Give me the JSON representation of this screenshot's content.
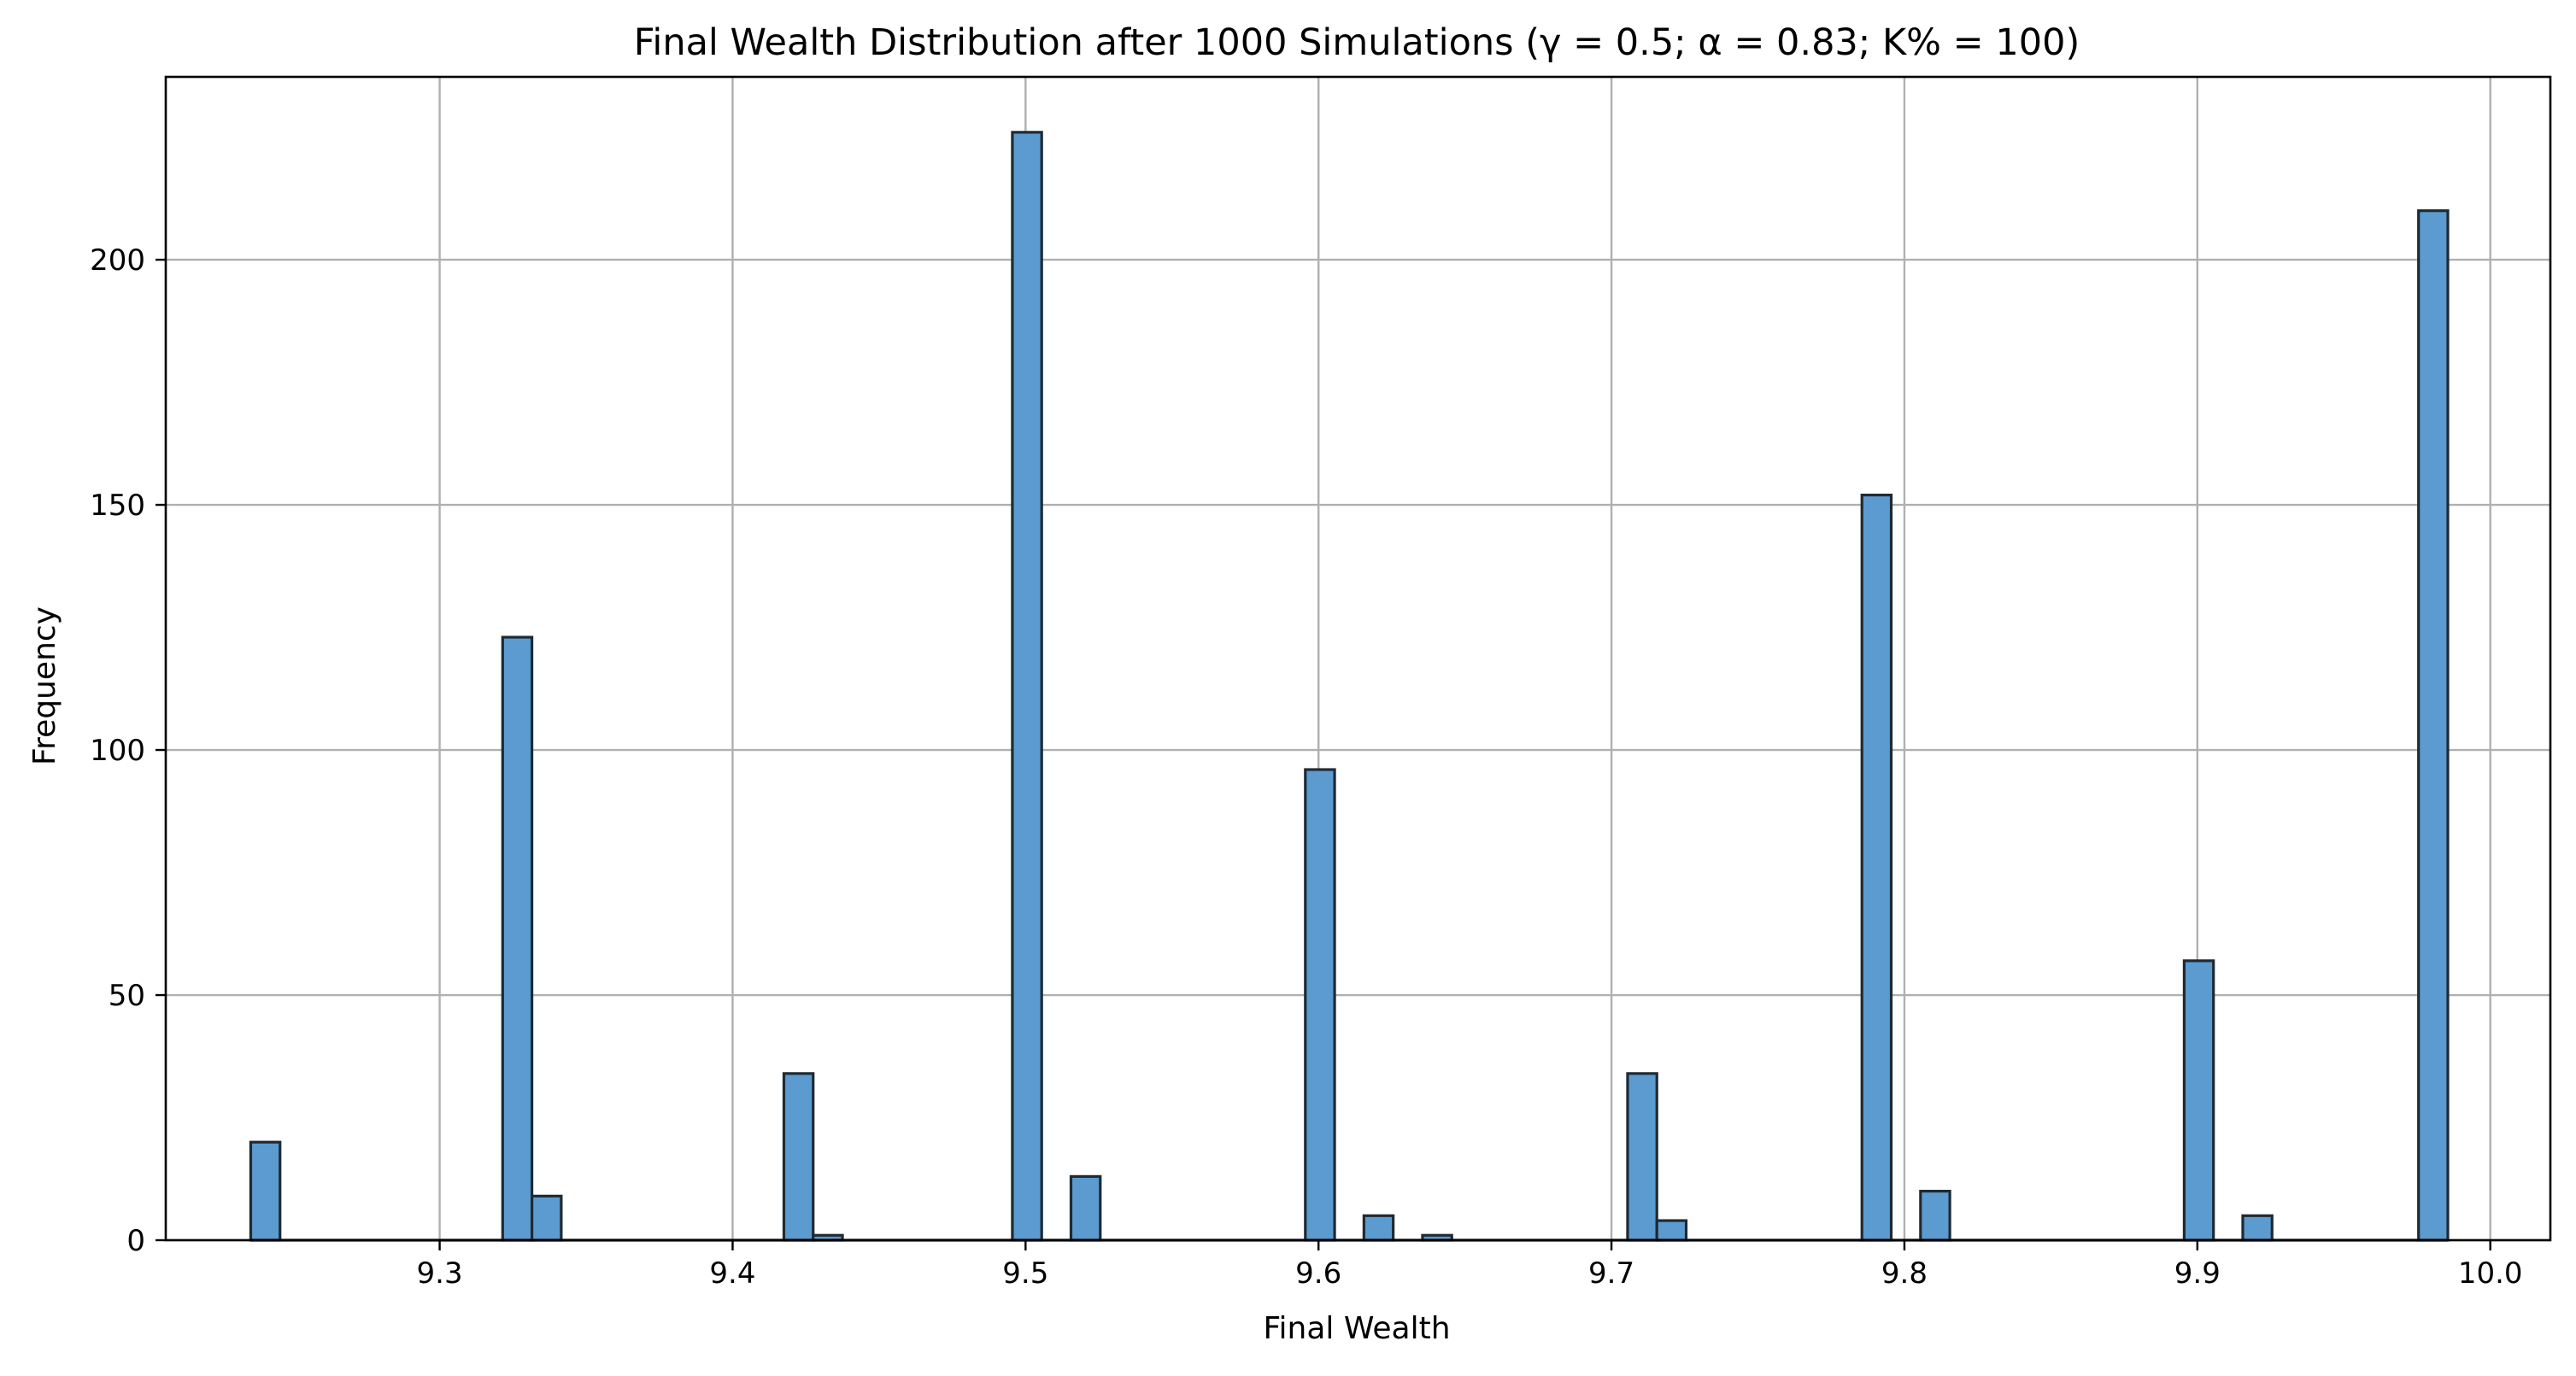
{
  "chart_data": {
    "type": "bar",
    "title": "Final Wealth Distribution after 1000 Simulations (γ = 0.5; α = 0.83; K% = 100)",
    "xlabel": "Final Wealth",
    "ylabel": "Frequency",
    "xlim": [
      9.2065,
      10.0205
    ],
    "ylim": [
      0,
      237.3
    ],
    "x_ticks": [
      9.3,
      9.4,
      9.5,
      9.6,
      9.7,
      9.8,
      9.9,
      10.0
    ],
    "x_tick_labels": [
      "9.3",
      "9.4",
      "9.5",
      "9.6",
      "9.7",
      "9.8",
      "9.9",
      "10.0"
    ],
    "y_ticks": [
      0,
      50,
      100,
      150,
      200
    ],
    "y_tick_labels": [
      "0",
      "50",
      "100",
      "150",
      "200"
    ],
    "grid": true,
    "bar_color": "#5b9bd0",
    "bar_edge_color": "#1f2a33",
    "bins": [
      {
        "x0": 9.2355,
        "x1": 9.2455,
        "count": 20
      },
      {
        "x0": 9.3215,
        "x1": 9.3315,
        "count": 123
      },
      {
        "x0": 9.3315,
        "x1": 9.3415,
        "count": 9
      },
      {
        "x0": 9.4175,
        "x1": 9.4275,
        "count": 34
      },
      {
        "x0": 9.4275,
        "x1": 9.4375,
        "count": 1
      },
      {
        "x0": 9.4955,
        "x1": 9.5055,
        "count": 226
      },
      {
        "x0": 9.5155,
        "x1": 9.5255,
        "count": 13
      },
      {
        "x0": 9.5955,
        "x1": 9.6055,
        "count": 96
      },
      {
        "x0": 9.6155,
        "x1": 9.6255,
        "count": 5
      },
      {
        "x0": 9.6355,
        "x1": 9.6455,
        "count": 1
      },
      {
        "x0": 9.7055,
        "x1": 9.7155,
        "count": 34
      },
      {
        "x0": 9.7155,
        "x1": 9.7255,
        "count": 4
      },
      {
        "x0": 9.7855,
        "x1": 9.7955,
        "count": 152
      },
      {
        "x0": 9.8055,
        "x1": 9.8155,
        "count": 10
      },
      {
        "x0": 9.8955,
        "x1": 9.9055,
        "count": 57
      },
      {
        "x0": 9.9155,
        "x1": 9.9255,
        "count": 5
      },
      {
        "x0": 9.9755,
        "x1": 9.9855,
        "count": 210
      }
    ],
    "zero_baseline": [
      9.2355,
      9.9855
    ]
  }
}
